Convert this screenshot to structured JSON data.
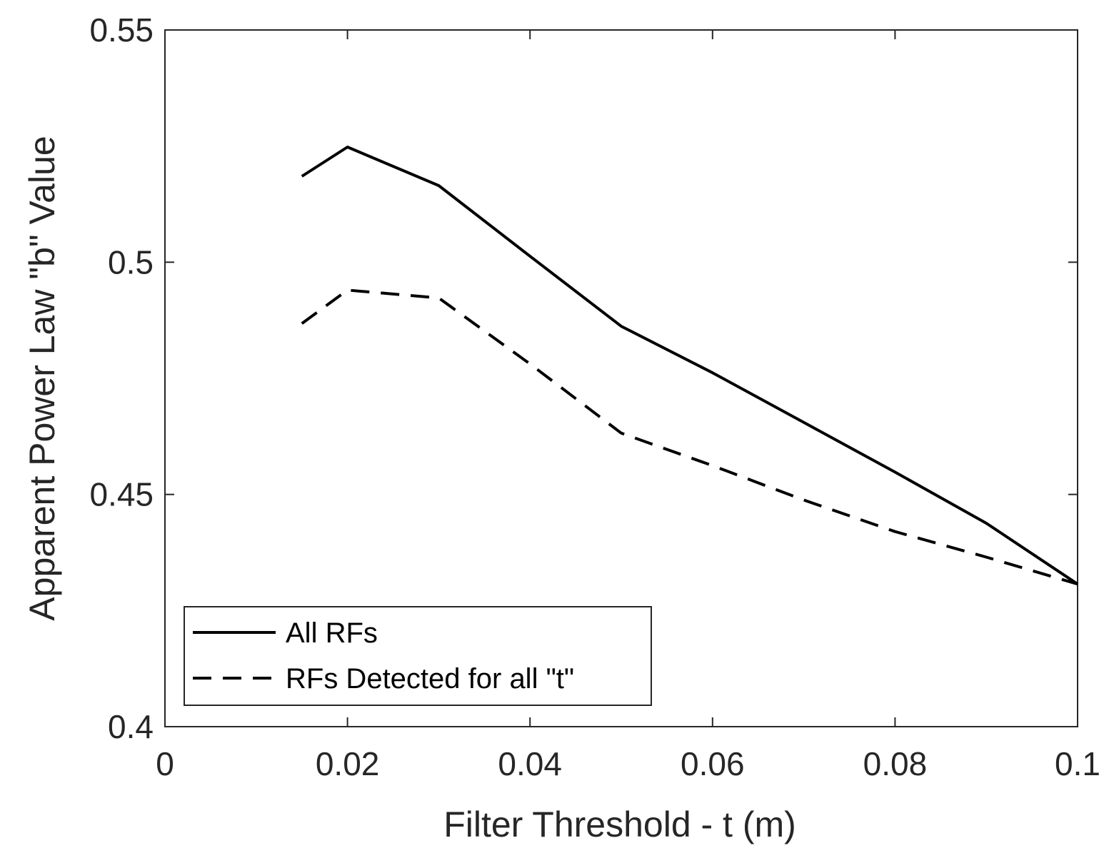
{
  "chart_data": {
    "type": "line",
    "title": "",
    "xlabel": "Filter Threshold - t (m)",
    "ylabel": "Apparent Power Law \"b\" Value",
    "xlim": [
      0,
      0.1
    ],
    "ylim": [
      0.4,
      0.55
    ],
    "xticks": [
      0,
      0.02,
      0.04,
      0.06,
      0.08,
      0.1
    ],
    "xtick_labels": [
      "0",
      "0.02",
      "0.04",
      "0.06",
      "0.08",
      "0.1"
    ],
    "yticks": [
      0.4,
      0.45,
      0.5,
      0.55
    ],
    "ytick_labels": [
      "0.4",
      "0.45",
      "0.5",
      "0.55"
    ],
    "grid": false,
    "legend_position": "bottom-left",
    "series": [
      {
        "name": "All RFs",
        "style": "solid",
        "color": "#000000",
        "x": [
          0.015,
          0.02,
          0.03,
          0.04,
          0.05,
          0.06,
          0.07,
          0.08,
          0.09,
          0.1
        ],
        "y": [
          0.5185,
          0.5248,
          0.5165,
          0.5013,
          0.4862,
          0.4762,
          0.4655,
          0.4548,
          0.4438,
          0.4307
        ]
      },
      {
        "name": "RFs Detected for all \"t\"",
        "style": "dashed",
        "color": "#000000",
        "x": [
          0.015,
          0.02,
          0.03,
          0.04,
          0.05,
          0.06,
          0.07,
          0.08,
          0.09,
          0.1
        ],
        "y": [
          0.4868,
          0.494,
          0.4923,
          0.4781,
          0.4632,
          0.4562,
          0.4488,
          0.442,
          0.4365,
          0.4307
        ]
      }
    ]
  }
}
